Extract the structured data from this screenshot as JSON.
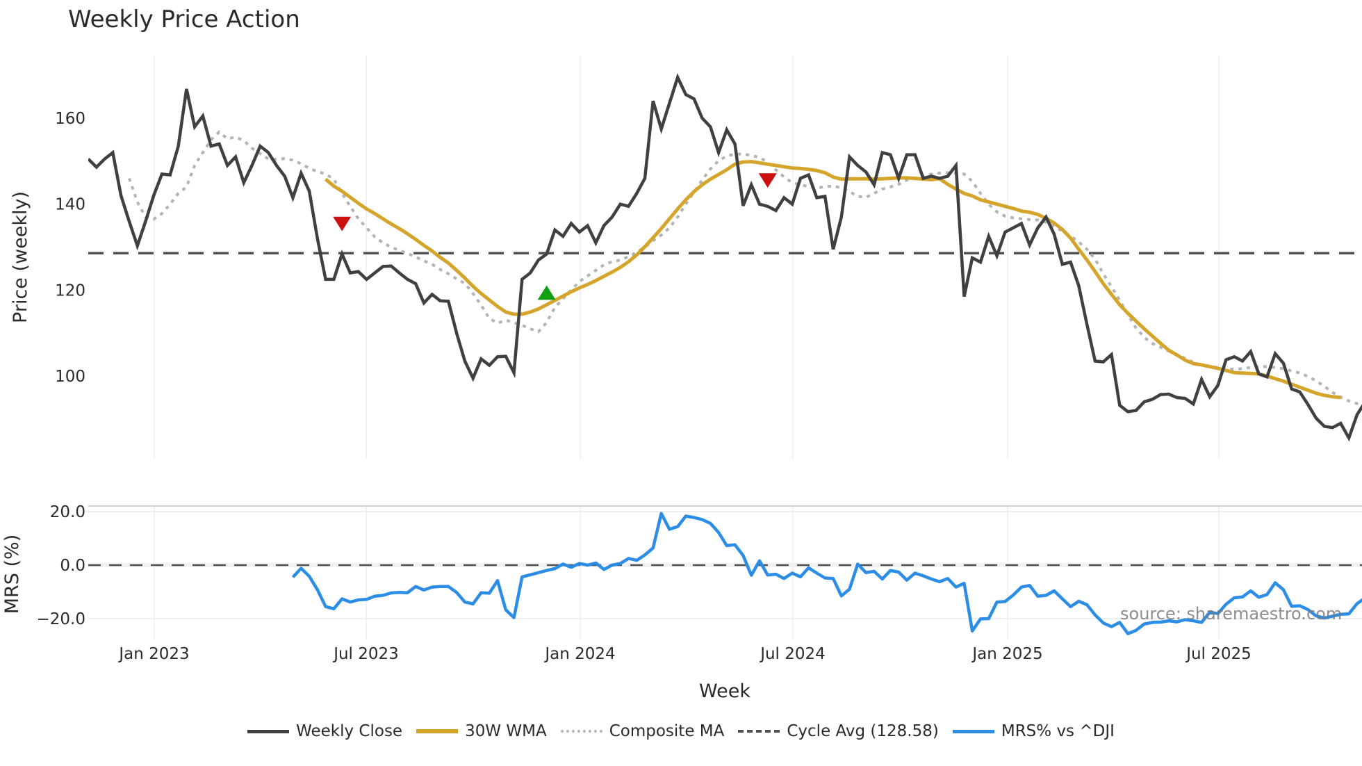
{
  "title": "Weekly Price Action",
  "source_note": "source: sharemaestro.com",
  "legend": [
    {
      "label": "Weekly Close",
      "color": "#404040",
      "style": "solid"
    },
    {
      "label": "30W WMA",
      "color": "#d4a52a",
      "style": "solid"
    },
    {
      "label": "Composite MA",
      "color": "#b4b4b4",
      "style": "dotted"
    },
    {
      "label": "Cycle Avg (128.58)",
      "color": "#505050",
      "style": "dashed"
    },
    {
      "label": "MRS% vs ^DJI",
      "color": "#2b8de6",
      "style": "solid"
    }
  ],
  "chart_data": [
    {
      "type": "line",
      "title": "Weekly Price Action",
      "ylabel": "Price (weekly)",
      "xlabel": "Week",
      "ylim": [
        80.5,
        174.5
      ],
      "yticks": [
        100,
        120,
        140,
        160
      ],
      "x_ticks": [
        "Jan 2023",
        "Jul 2023",
        "Jan 2024",
        "Jul 2024",
        "Jan 2025",
        "Jul 2025"
      ],
      "x_start": "2022-11-07",
      "grid": true,
      "cycle_avg": 128.58,
      "series": [
        {
          "name": "Weekly Close",
          "values": [
            150.5,
            148.6,
            150.5,
            152,
            142,
            136,
            130.3,
            136,
            142,
            147,
            146.8,
            153.5,
            166.8,
            158,
            160.5,
            153.5,
            154,
            149,
            151,
            145,
            149,
            153.5,
            152,
            149,
            146.5,
            141.5,
            147.2,
            143,
            132,
            122.5,
            122.5,
            128.4,
            124,
            124.3,
            122.5,
            124,
            125.5,
            125.6,
            124,
            122.5,
            121.5,
            117,
            119,
            117.5,
            117.4,
            110,
            103.5,
            99.5,
            104,
            102.5,
            104.5,
            104.6,
            100.8,
            122.5,
            124,
            127,
            128.4,
            134,
            132.5,
            135.5,
            133.5,
            135,
            131,
            135,
            137,
            140,
            139.5,
            142.5,
            146,
            164,
            157.5,
            163.5,
            169.5,
            165.5,
            164.5,
            160,
            158,
            152,
            157.3,
            154,
            139.6,
            144.5,
            140,
            139.5,
            138.5,
            141.5,
            140,
            146,
            146.8,
            141.5,
            141.8,
            129.5,
            137,
            151,
            149,
            147.5,
            144.5,
            152,
            151.5,
            146,
            151.5,
            151.5,
            146,
            146.5,
            146,
            146.5,
            149,
            118.5,
            127.5,
            126.5,
            132.5,
            128,
            133.5,
            134.5,
            135.5,
            130.5,
            134.5,
            137,
            133,
            126,
            126.5,
            121,
            112,
            103.5,
            103.3,
            105,
            93.2,
            91.7,
            92,
            94,
            94.6,
            95.7,
            95.8,
            95,
            94.8,
            93.5,
            99.2,
            95.2,
            97.8,
            103.8,
            104.5,
            103.5,
            105.7,
            100.5,
            99.8,
            105.2,
            103,
            97,
            96.3,
            93.4,
            90.2,
            88.3,
            88,
            89,
            85.6,
            91,
            94,
            93.4
          ]
        },
        {
          "name": "30W WMA",
          "start_index": 29,
          "values": [
            145.8,
            144.2,
            143,
            141.6,
            140.2,
            138.9,
            137.8,
            136.6,
            135.4,
            134.3,
            133.1,
            131.8,
            130.4,
            129.1,
            127.6,
            126.3,
            124.6,
            122.8,
            120.9,
            119.2,
            117.7,
            116.2,
            114.9,
            114.4,
            114.4,
            114.9,
            115.6,
            116.6,
            117.6,
            118.6,
            119.6,
            120.5,
            121.3,
            122.2,
            123.2,
            124.2,
            125.3,
            126.6,
            128.2,
            130.1,
            132.2,
            134.3,
            136.6,
            138.9,
            141,
            142.9,
            144.5,
            145.8,
            146.9,
            148,
            149.3,
            149.8,
            149.9,
            149.6,
            149.3,
            149,
            148.7,
            148.4,
            148.3,
            148.1,
            147.8,
            147.3,
            146.3,
            145.8,
            145.9,
            145.9,
            145.9,
            145.8,
            145.9,
            146,
            146.1,
            146.1,
            146,
            145.8,
            145.7,
            145.9,
            144.6,
            143.5,
            142.5,
            141.9,
            141,
            140.5,
            140,
            139.5,
            139,
            138.4,
            138.1,
            137.6,
            136.7,
            135.6,
            134.1,
            132.1,
            129.5,
            127,
            124.3,
            121.5,
            119,
            116.6,
            114.6,
            112.8,
            111,
            109.3,
            107.6,
            106,
            104.9,
            103.7,
            102.9,
            102.6,
            102.2,
            101.8,
            101.3,
            100.8,
            100.7,
            100.6,
            100.5,
            100,
            99.4,
            98.8,
            98.1,
            97.4,
            96.7,
            96,
            95.5,
            95.2,
            95
          ]
        },
        {
          "name": "Composite MA",
          "start_index": 5,
          "values": [
            146,
            140.5,
            137,
            136.5,
            137.8,
            140,
            142.5,
            144,
            149,
            152,
            155,
            156.8,
            155.2,
            155.6,
            154.8,
            153,
            151.8,
            150.5,
            150.4,
            150.6,
            150.2,
            149.4,
            148.3,
            147.6,
            147,
            145.8,
            142.5,
            139.5,
            136.6,
            134.5,
            132.4,
            131,
            130,
            129.2,
            128.6,
            127.7,
            126.8,
            126,
            124.8,
            123.8,
            122.6,
            121.6,
            119.2,
            116.5,
            113.4,
            112.3,
            113,
            112.4,
            111.8,
            111,
            110.3,
            112.5,
            116,
            118,
            120,
            122,
            123.3,
            124.6,
            125.9,
            126.6,
            127,
            127.8,
            128.8,
            130,
            131.5,
            132.8,
            134.5,
            137,
            140,
            142.8,
            145.6,
            148.2,
            150.1,
            151.2,
            151.6,
            151.7,
            151.3,
            150.9,
            149.7,
            148,
            146.3,
            145,
            144.5,
            144.1,
            143.7,
            144.1,
            144.2,
            143.8,
            142.9,
            141.8,
            141.6,
            142.5,
            143.5,
            144,
            144.6,
            145.6,
            146,
            146.5,
            147,
            147.2,
            147.3,
            147.2,
            147,
            145.3,
            142.5,
            140,
            138.2,
            137.2,
            136.8,
            136.6,
            136.4,
            136.3,
            135.8,
            134.8,
            133.7,
            132.6,
            131.2,
            129.5,
            127.2,
            123.8,
            120.8,
            117.6,
            114.3,
            111.2,
            109,
            107.6,
            106.7,
            105.8,
            105,
            104.1,
            103.2,
            102.5,
            102.2,
            102,
            101.6,
            101.6,
            101.7,
            102,
            102.2,
            102.2,
            102,
            101.7,
            101.2,
            100.7,
            99.9,
            98.9,
            97.6,
            96.2,
            95.1,
            94.2,
            93.6,
            93.4
          ]
        },
        {
          "name": "Cycle Avg (128.58)",
          "constant": 128.58
        }
      ],
      "markers": [
        {
          "type": "sell",
          "shape": "triangle-down",
          "color": "#cc1111",
          "index": 31,
          "value": 135.5
        },
        {
          "type": "buy",
          "shape": "triangle-up",
          "color": "#13a113",
          "index": 56,
          "value": 119.3
        },
        {
          "type": "sell",
          "shape": "triangle-down",
          "color": "#cc1111",
          "index": 83,
          "value": 145.6
        }
      ]
    },
    {
      "type": "line",
      "ylabel": "MRS (%)",
      "ylim": [
        -31,
        24
      ],
      "yticks": [
        -20.0,
        0.0,
        20.0
      ],
      "yticklabels": [
        "−20.0",
        "0.0",
        "20.0"
      ],
      "zero_line": 0,
      "series": [
        {
          "name": "MRS% vs ^DJI",
          "start_index": 25,
          "values": [
            -4.5,
            -1.2,
            -4.2,
            -9.2,
            -15.5,
            -16.3,
            -12.6,
            -13.8,
            -13,
            -12.8,
            -11.6,
            -11.3,
            -10.4,
            -10.2,
            -10.3,
            -8,
            -9.3,
            -8.2,
            -8,
            -8,
            -10.2,
            -13.8,
            -14.5,
            -10.3,
            -10.5,
            -5.8,
            -16.7,
            -19.6,
            -4.4,
            -3.6,
            -2.8,
            -2,
            -1.3,
            0.4,
            -0.8,
            0.6,
            0,
            0.8,
            -1.6,
            0,
            0.6,
            2.5,
            1.8,
            3.8,
            6.4,
            19.3,
            13.4,
            14.4,
            18.3,
            17.8,
            17,
            15.6,
            12.2,
            7.3,
            7.6,
            3.6,
            -3.8,
            1.6,
            -3.7,
            -3.4,
            -5,
            -3,
            -4.4,
            -1,
            -3,
            -4.8,
            -5,
            -11.5,
            -9,
            0.4,
            -2.8,
            -2.3,
            -5.2,
            -2,
            -2.6,
            -5.6,
            -3,
            -4,
            -5.2,
            -6.2,
            -5,
            -8.2,
            -6.8,
            -24.6,
            -20.1,
            -20,
            -13.8,
            -13.6,
            -11.2,
            -8.2,
            -7.6,
            -11.6,
            -11.3,
            -9.6,
            -12.6,
            -15.5,
            -13.5,
            -14.8,
            -18.6,
            -21.6,
            -23,
            -21.4,
            -25.6,
            -24.4,
            -22,
            -21.4,
            -21.3,
            -20.8,
            -21.2,
            -20.4,
            -20.8,
            -21.4,
            -17.6,
            -18.1,
            -14.6,
            -12.2,
            -11.9,
            -9.6,
            -12,
            -11,
            -6.6,
            -9.2,
            -15.4,
            -15.2,
            -16.6,
            -19,
            -19.8,
            -19.1,
            -18.4,
            -18.2,
            -14.4,
            -12.2,
            -13.4
          ]
        }
      ]
    }
  ],
  "axes": {
    "price_ylabel": "Price (weekly)",
    "mrs_ylabel": "MRS (%)",
    "xlabel": "Week",
    "price_yticks": [
      "100",
      "120",
      "140",
      "160"
    ],
    "mrs_yticks": [
      "20.0",
      "0.0",
      "−20.0"
    ],
    "x_ticks": [
      "Jan 2023",
      "Jul 2023",
      "Jan 2024",
      "Jul 2024",
      "Jan 2025",
      "Jul 2025"
    ]
  }
}
